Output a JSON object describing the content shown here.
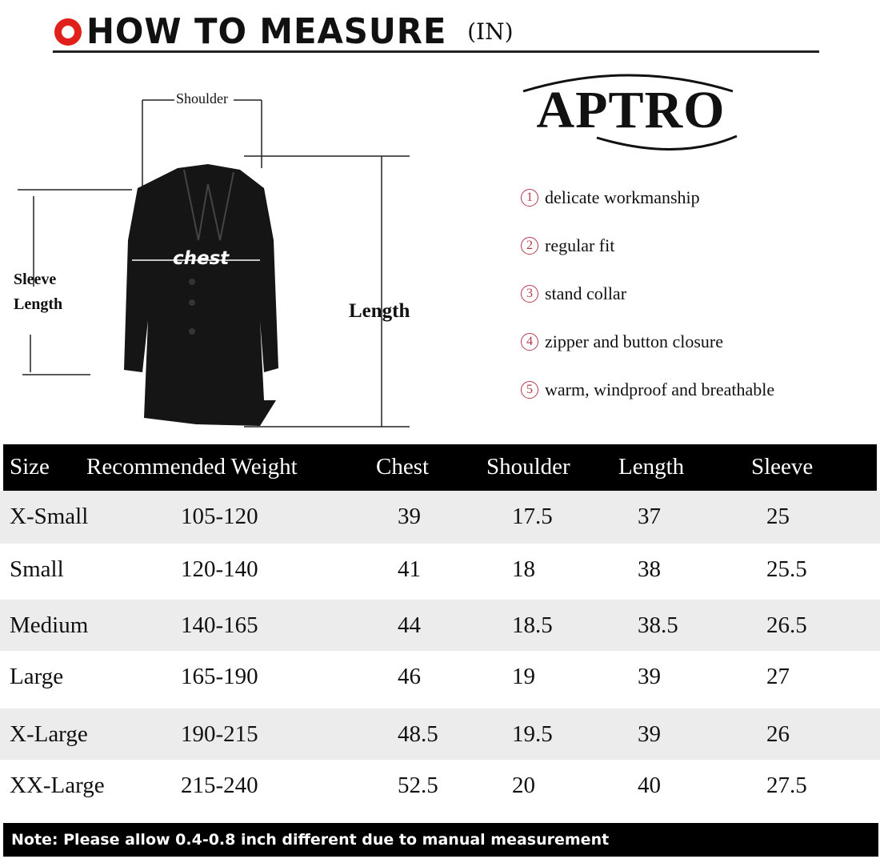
{
  "header": {
    "title": "HOW TO MEASURE",
    "unit": "(IN)",
    "icon": "red-ring-icon",
    "accent": "#e0201b"
  },
  "diagram": {
    "shoulder": "Shoulder",
    "chest": "chest",
    "sleeve_line1": "Sleeve",
    "sleeve_line2": "Length",
    "length": "Length"
  },
  "brand": {
    "logo": "APTRO"
  },
  "features": [
    {
      "num": "1",
      "text": "delicate workmanship"
    },
    {
      "num": "2",
      "text": "regular fit"
    },
    {
      "num": "3",
      "text": "stand collar"
    },
    {
      "num": "4",
      "text": "zipper and button closure"
    },
    {
      "num": "5",
      "text": "warm, windproof and breathable"
    }
  ],
  "table": {
    "headers": [
      "Size",
      "Recommended Weight",
      "Chest",
      "Shoulder",
      "Length",
      "Sleeve"
    ],
    "rows": [
      [
        "X-Small",
        "105-120",
        "39",
        "17.5",
        "37",
        "25"
      ],
      [
        "Small",
        "120-140",
        "41",
        "18",
        "38",
        "25.5"
      ],
      [
        "Medium",
        "140-165",
        "44",
        "18.5",
        "38.5",
        "26.5"
      ],
      [
        "Large",
        "165-190",
        "46",
        "19",
        "39",
        "27"
      ],
      [
        "X-Large",
        "190-215",
        "48.5",
        "19.5",
        "39",
        "26"
      ],
      [
        "XX-Large",
        "215-240",
        "52.5",
        "20",
        "40",
        "27.5"
      ]
    ]
  },
  "note": "Note: Please allow 0.4-0.8 inch different due to manual measurement"
}
